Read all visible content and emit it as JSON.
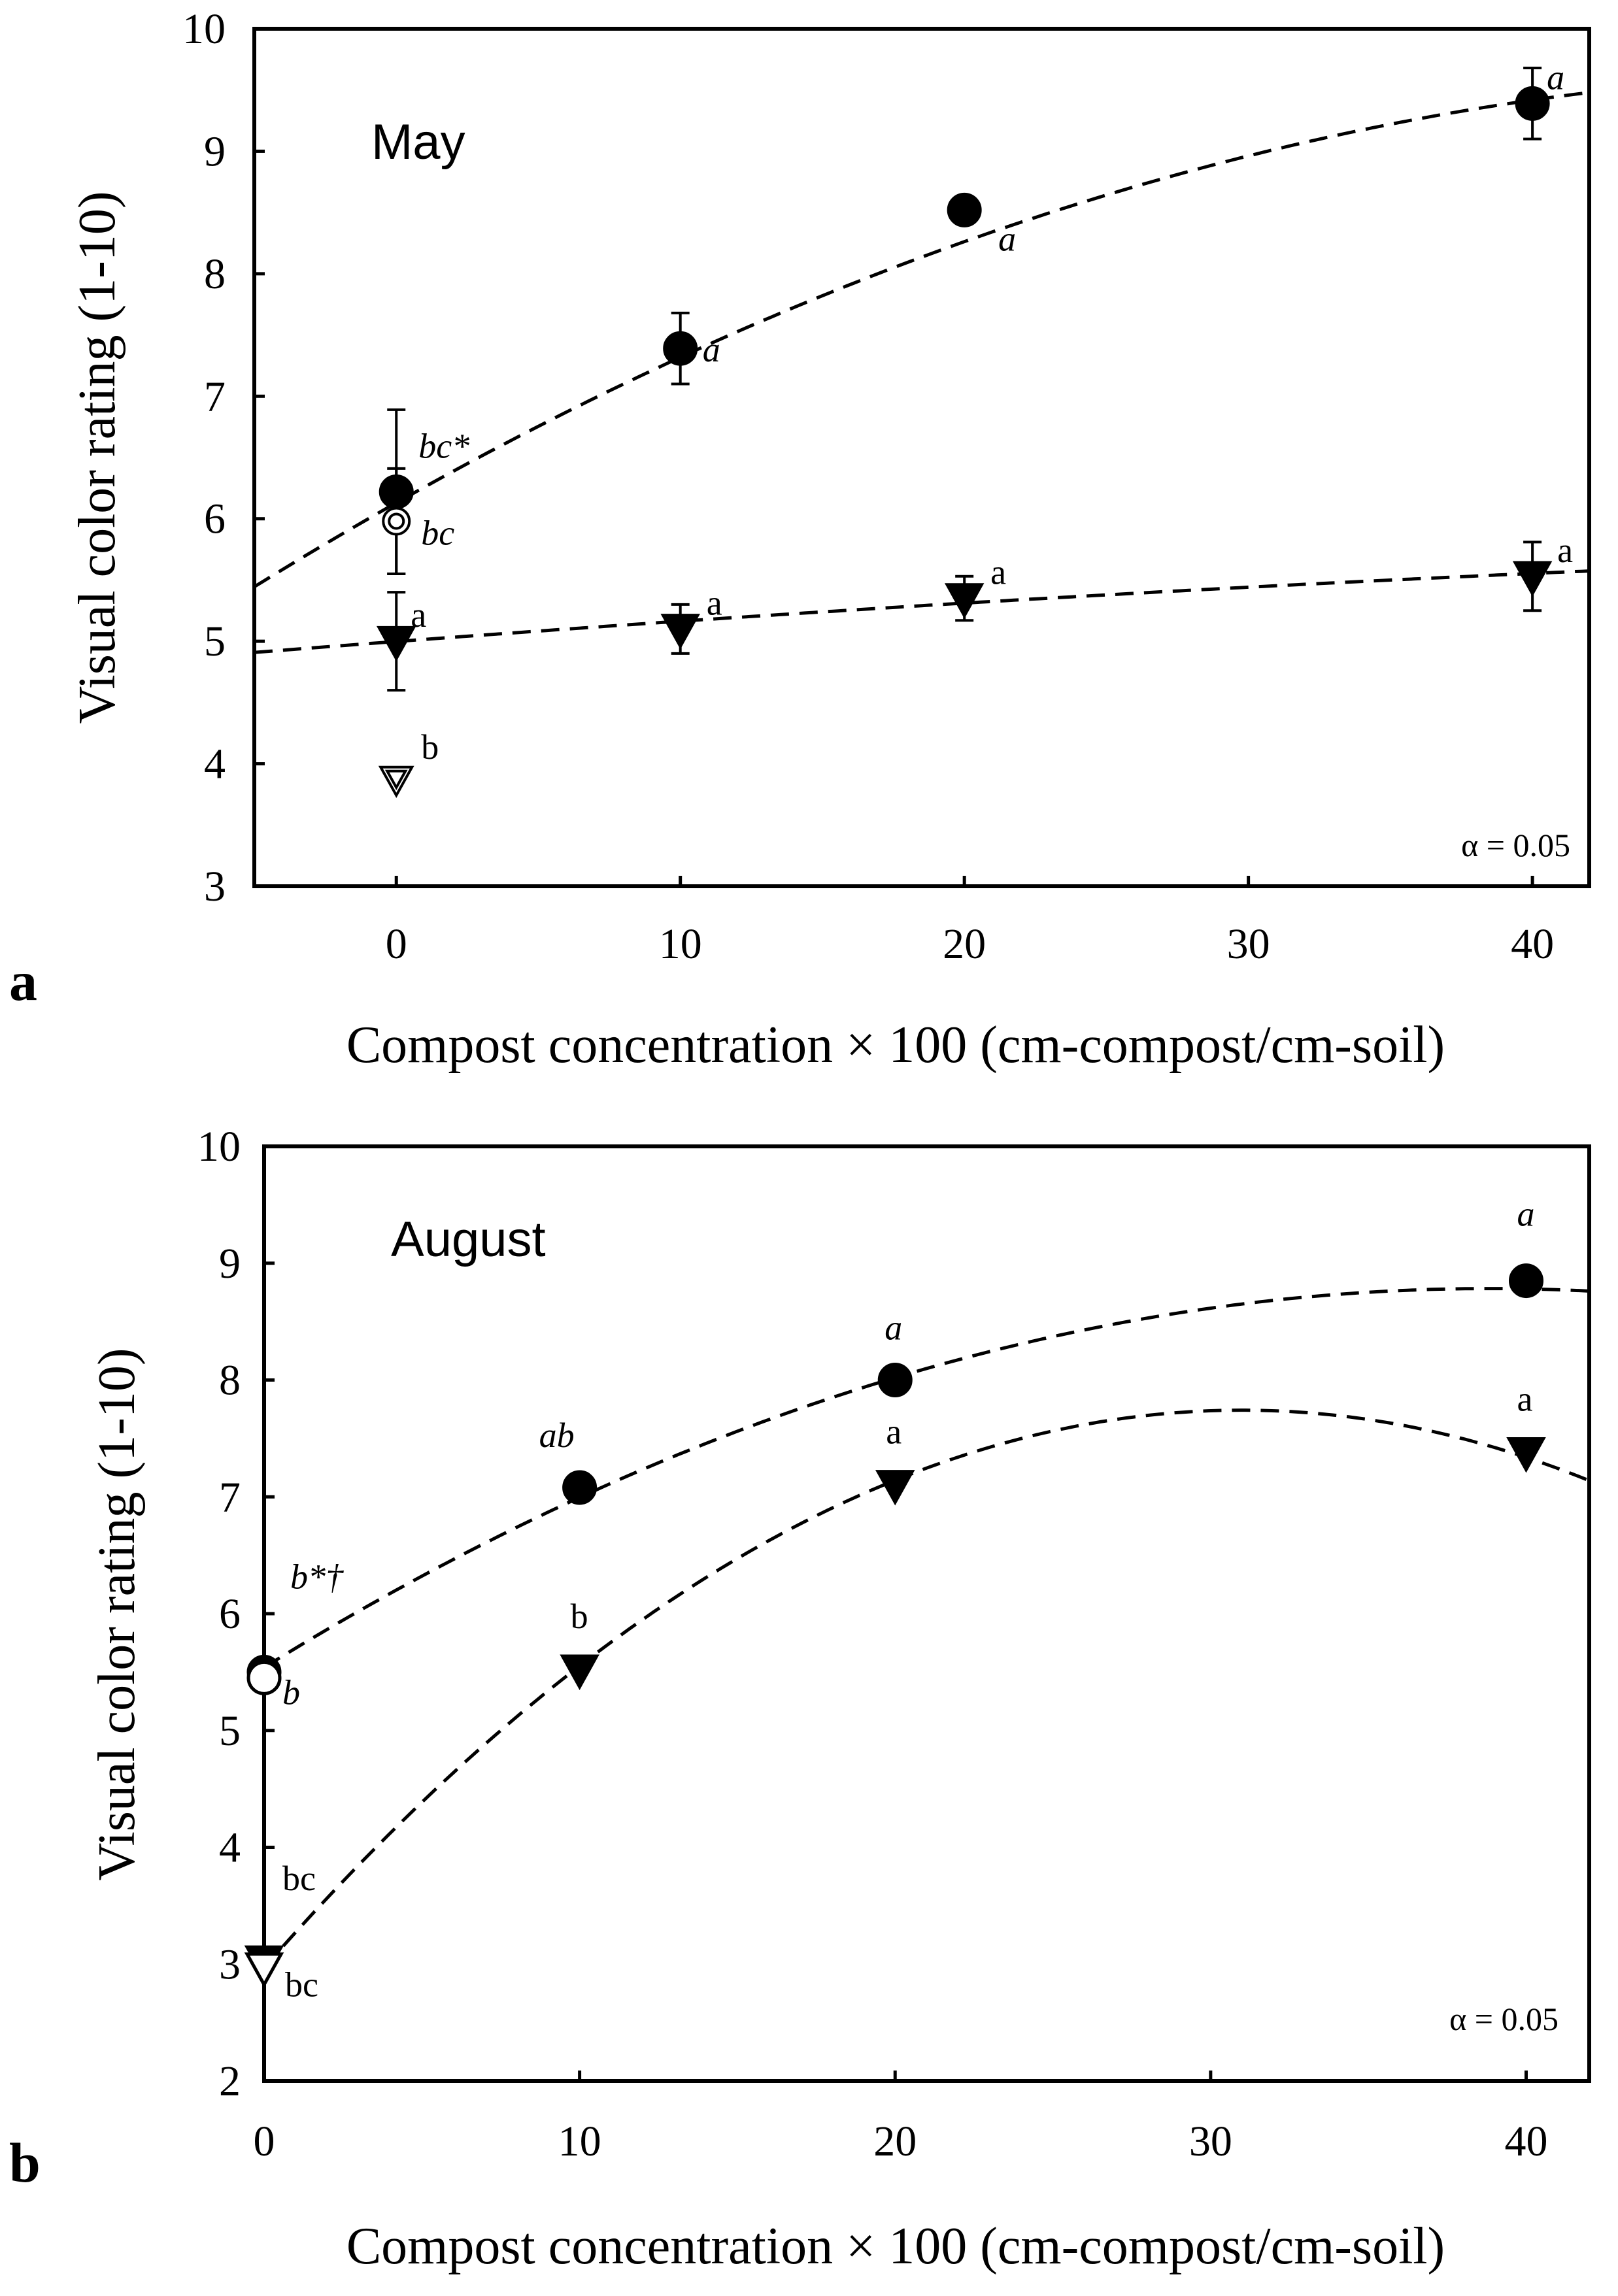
{
  "chart_data": [
    {
      "panel": "a",
      "type": "scatter",
      "month_label": "May",
      "xlabel": "Compost concentration × 100 (cm-compost/cm-soil)",
      "ylabel": "Visual color rating (1-10)",
      "xlim": [
        -5,
        42
      ],
      "ylim": [
        3,
        10
      ],
      "xticks": [
        0,
        10,
        20,
        30,
        40
      ],
      "yticks": [
        3,
        4,
        5,
        6,
        7,
        8,
        9,
        10
      ],
      "annotation": "α = 0.05",
      "series": [
        {
          "name": "circle-filled",
          "marker": "circle",
          "filled": true,
          "points": [
            {
              "x": 0,
              "y": 6.22,
              "err": 0.67,
              "label": "bc*",
              "italic": true
            },
            {
              "x": 10,
              "y": 7.39,
              "err": 0.29,
              "label": "a",
              "italic": true
            },
            {
              "x": 20,
              "y": 8.52,
              "err": 0.1,
              "label": "a",
              "italic": true
            },
            {
              "x": 40,
              "y": 9.39,
              "err": 0.29,
              "label": "a",
              "italic": true
            }
          ],
          "trend": {
            "type": "quadratic",
            "coef": [
              6.13,
              0.131,
              -0.00122
            ]
          }
        },
        {
          "name": "circle-open",
          "marker": "double-circle",
          "filled": false,
          "points": [
            {
              "x": 0,
              "y": 5.98,
              "err": 0.43,
              "label": "bc",
              "italic": true
            }
          ]
        },
        {
          "name": "triangle-filled",
          "marker": "triangle-down",
          "filled": true,
          "points": [
            {
              "x": 0,
              "y": 5.0,
              "err": 0.4,
              "label": "a",
              "italic": false
            },
            {
              "x": 10,
              "y": 5.1,
              "err": 0.2,
              "label": "a",
              "italic": false
            },
            {
              "x": 20,
              "y": 5.35,
              "err": 0.18,
              "label": "a",
              "italic": false
            },
            {
              "x": 40,
              "y": 5.53,
              "err": 0.28,
              "label": "a",
              "italic": false
            }
          ],
          "trend": {
            "type": "quadratic",
            "coef": [
              4.998,
              0.01745,
              -8.91e-05
            ]
          }
        },
        {
          "name": "triangle-open",
          "marker": "double-triangle-down",
          "filled": false,
          "points": [
            {
              "x": 0,
              "y": 3.87,
              "label": "b",
              "italic": false
            }
          ]
        }
      ]
    },
    {
      "panel": "b",
      "type": "scatter",
      "month_label": "August",
      "xlabel": "Compost concentration × 100 (cm-compost/cm-soil)",
      "ylabel": "Visual color rating (1-10)",
      "xlim": [
        0,
        42
      ],
      "ylim": [
        2,
        10
      ],
      "xticks": [
        0,
        10,
        20,
        30,
        40
      ],
      "yticks": [
        2,
        3,
        4,
        5,
        6,
        7,
        8,
        9,
        10
      ],
      "annotation": "α = 0.05",
      "series": [
        {
          "name": "circle-filled",
          "marker": "circle",
          "filled": true,
          "points": [
            {
              "x": 0,
              "y": 5.5,
              "label": "b*†",
              "italic": true
            },
            {
              "x": 10,
              "y": 7.08,
              "label": "ab",
              "italic": true
            },
            {
              "x": 20,
              "y": 8.0,
              "label": "a",
              "italic": true
            },
            {
              "x": 40,
              "y": 8.85,
              "label": "a",
              "italic": true
            }
          ],
          "trend": {
            "type": "quadratic",
            "coef": [
              5.54,
              0.167,
              -0.00215
            ]
          }
        },
        {
          "name": "circle-open",
          "marker": "circle",
          "filled": false,
          "points": [
            {
              "x": 0,
              "y": 5.45,
              "label": "b",
              "italic": true
            }
          ]
        },
        {
          "name": "triangle-filled",
          "marker": "triangle-down",
          "filled": true,
          "points": [
            {
              "x": 0,
              "y": 3.03,
              "label": "bc",
              "italic": false
            },
            {
              "x": 10,
              "y": 5.52,
              "label": "b",
              "italic": false
            },
            {
              "x": 20,
              "y": 7.1,
              "label": "a",
              "italic": false
            },
            {
              "x": 40,
              "y": 7.38,
              "label": "a",
              "italic": false
            }
          ],
          "trend": {
            "type": "quadratic",
            "coef": [
              2.97,
              0.308,
              -0.00497
            ]
          }
        },
        {
          "name": "triangle-open",
          "marker": "triangle-down",
          "filled": false,
          "points": [
            {
              "x": 0,
              "y": 2.97,
              "label": "bc",
              "italic": false
            }
          ]
        }
      ]
    }
  ]
}
